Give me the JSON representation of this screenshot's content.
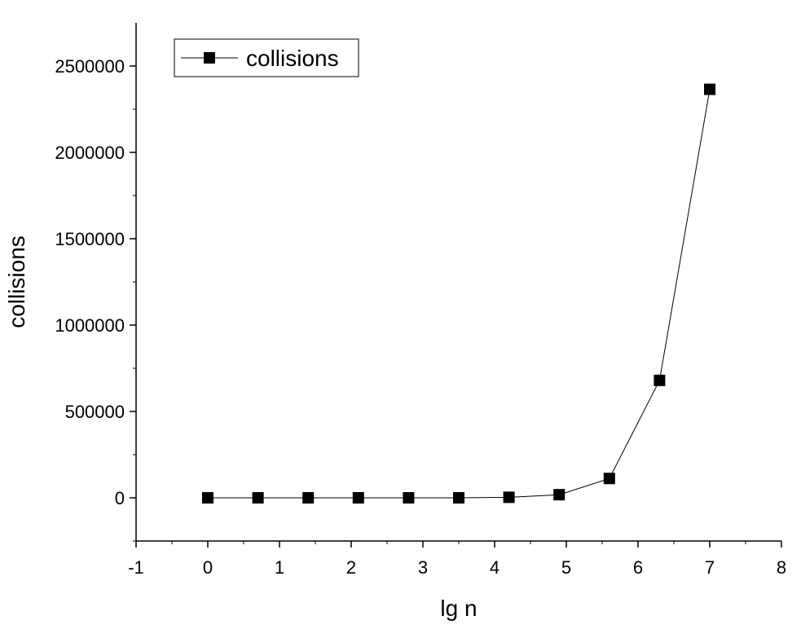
{
  "chart_data": {
    "type": "line",
    "xlabel": "lg n",
    "ylabel": "collisions",
    "xlim": [
      -1,
      8
    ],
    "ylim": [
      -250000,
      2750000
    ],
    "x_ticks": [
      -1,
      0,
      1,
      2,
      3,
      4,
      5,
      6,
      7,
      8
    ],
    "y_ticks": [
      0,
      500000,
      1000000,
      1500000,
      2000000,
      2500000
    ],
    "legend_position": "top-left",
    "grid": false,
    "series": [
      {
        "name": "collisions",
        "color": "#000000",
        "marker": "square",
        "x": [
          0,
          0.7,
          1.4,
          2.1,
          2.8,
          3.5,
          4.2,
          4.9,
          5.6,
          6.3,
          7.0
        ],
        "y": [
          0,
          0,
          0,
          0,
          0,
          0,
          3000,
          18000,
          112000,
          680000,
          2365000
        ]
      }
    ]
  }
}
